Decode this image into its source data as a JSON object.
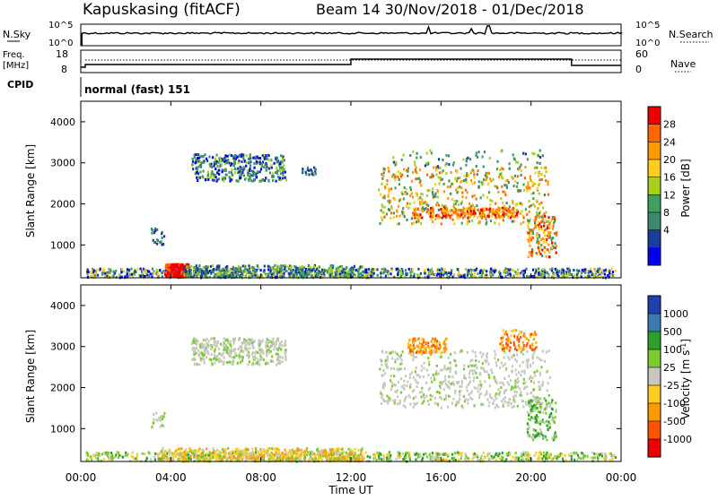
{
  "header": {
    "station": "Kapuskasing (fitACF)",
    "beam_info": "Beam 14  30/Nov/2018 - 01/Dec/2018"
  },
  "nsky_panel": {
    "left_label": "N.Sky",
    "right_label": "N.Search",
    "left_ticks": [
      "10^5",
      "10^0"
    ],
    "right_ticks": [
      "10^5",
      "10^0"
    ]
  },
  "freq_panel": {
    "left_label_1": "Freq.",
    "left_label_2": "[MHz]",
    "right_label": "Nave",
    "left_ticks": [
      "18",
      "8"
    ],
    "right_ticks": [
      "60",
      "0"
    ]
  },
  "cpid": {
    "label": "CPID",
    "mode": "normal (fast) 151"
  },
  "chart_data": [
    {
      "type": "heatmap",
      "name": "power",
      "ylabel": "Slant Range [km]",
      "ylim": [
        200,
        4500
      ],
      "y_ticks": [
        "1000",
        "2000",
        "3000",
        "4000"
      ],
      "x_ticks": [
        "00:00",
        "04:00",
        "08:00",
        "12:00",
        "16:00",
        "20:00",
        "00:00"
      ],
      "colorbar_label": "Power [dB]",
      "colorbar_ticks": [
        "28",
        "24",
        "20",
        "16",
        "12",
        "8",
        "4"
      ],
      "colorbar_colors": [
        "#ee0000",
        "#ff6600",
        "#ff9900",
        "#ffcc22",
        "#a8d020",
        "#40a060",
        "#3c8870",
        "#1a3c9c",
        "#0000ee"
      ]
    },
    {
      "type": "heatmap",
      "name": "velocity",
      "ylabel": "Slant Range [km]",
      "ylim": [
        200,
        4500
      ],
      "y_ticks": [
        "1000",
        "2000",
        "3000",
        "4000"
      ],
      "x_ticks": [
        "00:00",
        "04:00",
        "08:00",
        "12:00",
        "16:00",
        "20:00",
        "00:00"
      ],
      "xlabel": "Time UT",
      "colorbar_label": "Velocity [m s",
      "colorbar_label_sup": "-1",
      "colorbar_label_end": "]",
      "colorbar_ticks": [
        "1000",
        "500",
        "100",
        "25",
        "-25",
        "-100",
        "-500",
        "-1000"
      ],
      "colorbar_colors": [
        "#2040b0",
        "#3a7ab0",
        "#2ca02c",
        "#7ccc30",
        "#c8c8c0",
        "#ffcc22",
        "#ff9900",
        "#ff5500",
        "#ee0000"
      ]
    }
  ]
}
